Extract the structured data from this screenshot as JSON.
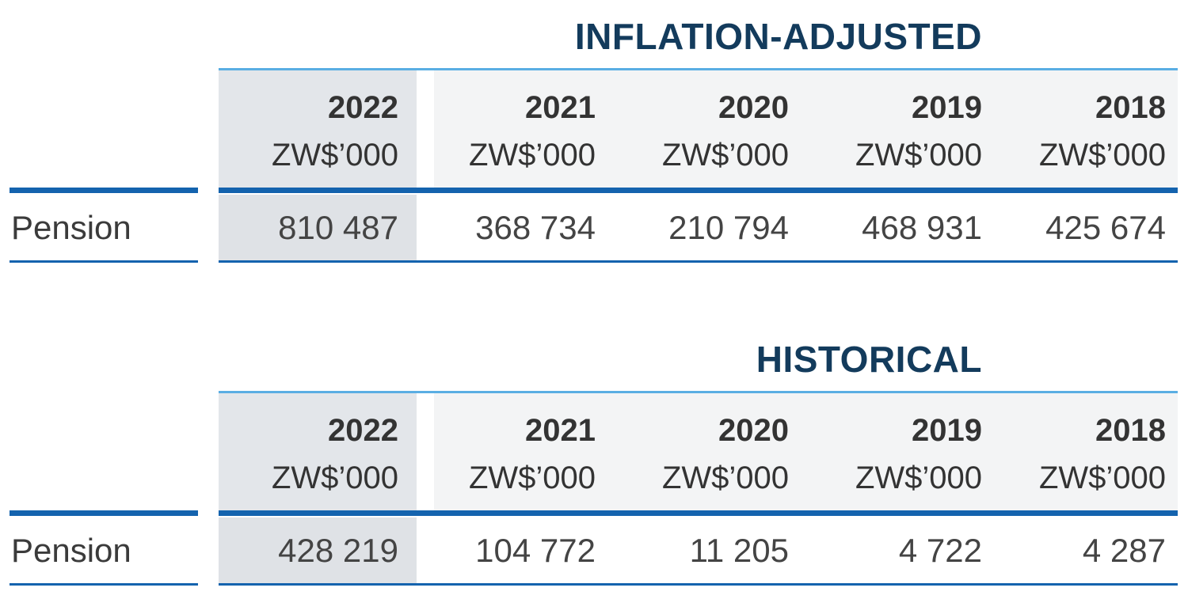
{
  "tables": [
    {
      "title": "INFLATION-ADJUSTED",
      "columns": [
        {
          "year": "2022",
          "unit": "ZW$’000"
        },
        {
          "year": "2021",
          "unit": "ZW$’000"
        },
        {
          "year": "2020",
          "unit": "ZW$’000"
        },
        {
          "year": "2019",
          "unit": "ZW$’000"
        },
        {
          "year": "2018",
          "unit": "ZW$’000"
        }
      ],
      "rows": [
        {
          "label": "Pension",
          "values": [
            "810 487",
            "368 734",
            "210 794",
            "468 931",
            "425 674"
          ]
        }
      ]
    },
    {
      "title": "HISTORICAL",
      "columns": [
        {
          "year": "2022",
          "unit": "ZW$’000"
        },
        {
          "year": "2021",
          "unit": "ZW$’000"
        },
        {
          "year": "2020",
          "unit": "ZW$’000"
        },
        {
          "year": "2019",
          "unit": "ZW$’000"
        },
        {
          "year": "2018",
          "unit": "ZW$’000"
        }
      ],
      "rows": [
        {
          "label": "Pension",
          "values": [
            "428 219",
            "104 772",
            "11 205",
            "4 722",
            "4 287"
          ]
        }
      ]
    }
  ],
  "colors": {
    "title": "#133b5c",
    "rule_light": "#5aaee3",
    "rule_dark": "#1463ae",
    "current_year_shade": "#e3e6ea",
    "header_shade": "#f3f4f5"
  }
}
